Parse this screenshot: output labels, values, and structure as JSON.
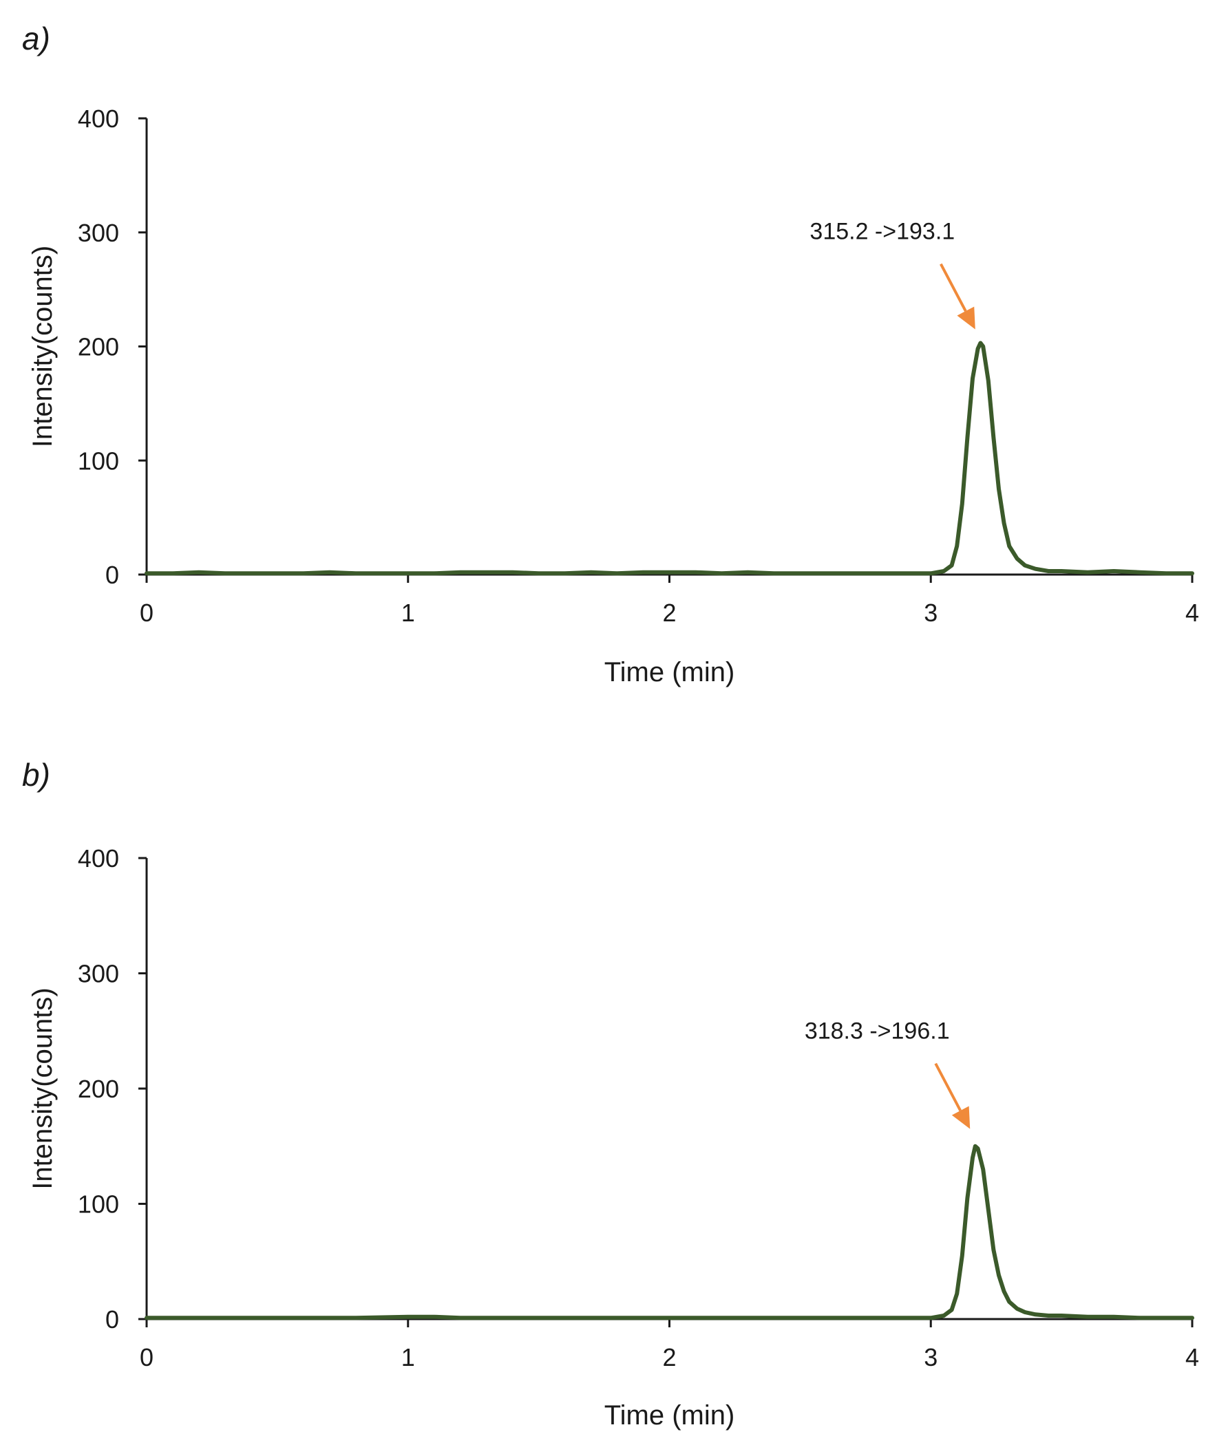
{
  "colors": {
    "trace": "#3b5a2a",
    "arrow": "#f08a3a",
    "axis": "#1a1a1a"
  },
  "chart_data": [
    {
      "type": "line",
      "panel_label": "a)",
      "title": "",
      "xlabel": "Time (min)",
      "ylabel": "Intensity(counts)",
      "xlim": [
        0,
        4
      ],
      "ylim": [
        0,
        400
      ],
      "x_ticks": [
        0,
        1,
        2,
        3,
        4
      ],
      "y_ticks": [
        0,
        100,
        200,
        300,
        400
      ],
      "grid": false,
      "series": [
        {
          "name": "315.2 ->193.1",
          "x": [
            0,
            0.1,
            0.2,
            0.3,
            0.4,
            0.5,
            0.6,
            0.7,
            0.8,
            0.9,
            1.0,
            1.1,
            1.2,
            1.3,
            1.4,
            1.5,
            1.6,
            1.7,
            1.8,
            1.9,
            2.0,
            2.1,
            2.2,
            2.3,
            2.4,
            2.5,
            2.6,
            2.7,
            2.8,
            2.9,
            3.0,
            3.05,
            3.08,
            3.1,
            3.12,
            3.14,
            3.16,
            3.18,
            3.19,
            3.2,
            3.22,
            3.24,
            3.26,
            3.28,
            3.3,
            3.33,
            3.36,
            3.4,
            3.45,
            3.5,
            3.6,
            3.7,
            3.8,
            3.9,
            4.0
          ],
          "y": [
            1,
            1,
            2,
            1,
            1,
            1,
            1,
            2,
            1,
            1,
            1,
            1,
            2,
            2,
            2,
            1,
            1,
            2,
            1,
            2,
            2,
            2,
            1,
            2,
            1,
            1,
            1,
            1,
            1,
            1,
            1,
            3,
            8,
            25,
            62,
            120,
            172,
            198,
            203,
            200,
            170,
            120,
            75,
            45,
            25,
            14,
            8,
            5,
            3,
            3,
            2,
            3,
            2,
            1,
            1
          ]
        }
      ],
      "annotations": [
        {
          "text": "315.2 ->193.1",
          "arrow_to": {
            "x": 3.17,
            "y": 215
          }
        }
      ]
    },
    {
      "type": "line",
      "panel_label": "b)",
      "title": "",
      "xlabel": "Time (min)",
      "ylabel": "Intensity(counts)",
      "xlim": [
        0,
        4
      ],
      "ylim": [
        0,
        400
      ],
      "x_ticks": [
        0,
        1,
        2,
        3,
        4
      ],
      "y_ticks": [
        0,
        100,
        200,
        300,
        400
      ],
      "grid": false,
      "series": [
        {
          "name": "318.3 ->196.1",
          "x": [
            0,
            0.2,
            0.4,
            0.6,
            0.8,
            1.0,
            1.1,
            1.2,
            1.4,
            1.6,
            1.8,
            2.0,
            2.2,
            2.4,
            2.6,
            2.8,
            3.0,
            3.05,
            3.08,
            3.1,
            3.12,
            3.14,
            3.16,
            3.17,
            3.18,
            3.2,
            3.22,
            3.24,
            3.26,
            3.28,
            3.3,
            3.33,
            3.36,
            3.4,
            3.45,
            3.5,
            3.6,
            3.7,
            3.8,
            3.9,
            4.0
          ],
          "y": [
            1,
            1,
            1,
            1,
            1,
            2,
            2,
            1,
            1,
            1,
            1,
            1,
            1,
            1,
            1,
            1,
            1,
            3,
            8,
            22,
            55,
            105,
            140,
            150,
            148,
            130,
            95,
            60,
            38,
            24,
            15,
            9,
            6,
            4,
            3,
            3,
            2,
            2,
            1,
            1,
            1
          ]
        }
      ],
      "annotations": [
        {
          "text": "318.3 ->196.1",
          "arrow_to": {
            "x": 3.15,
            "y": 165
          }
        }
      ]
    }
  ]
}
